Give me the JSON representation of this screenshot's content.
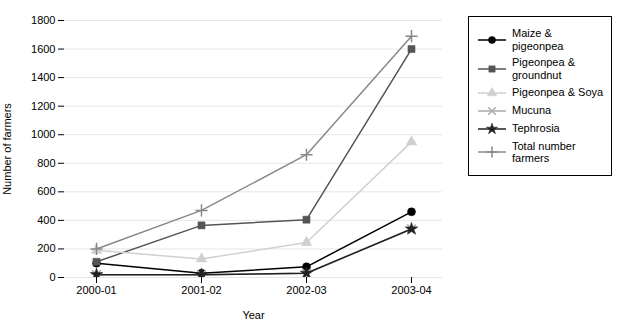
{
  "chart_data": {
    "type": "line",
    "xlabel": "Year",
    "ylabel": "Number of farmers",
    "categories": [
      "2000-01",
      "2001-02",
      "2002-03",
      "2003-04"
    ],
    "series": [
      {
        "name": "Maize &\npigeonpea",
        "color": "#000000",
        "marker": "circle",
        "line_style": "solid",
        "values": [
          100,
          30,
          75,
          460
        ]
      },
      {
        "name": "Pigeonpea &\ngroundnut",
        "color": "#555555",
        "marker": "square",
        "line_style": "solid",
        "values": [
          110,
          365,
          405,
          1600
        ]
      },
      {
        "name": "Pigeonpea & Soya",
        "color": "#d0d0d0",
        "marker": "triangle",
        "line_style": "solid",
        "values": [
          190,
          130,
          245,
          950
        ]
      },
      {
        "name": "Mucuna",
        "color": "#aaaaaa",
        "marker": "times",
        "line_style": "solid",
        "values": [
          20,
          20,
          30,
          340
        ]
      },
      {
        "name": "Tephrosia",
        "color": "#222222",
        "marker": "star",
        "line_style": "solid",
        "values": [
          20,
          20,
          30,
          340
        ]
      },
      {
        "name": "Total number\nfarmers",
        "color": "#888888",
        "marker": "plus",
        "line_style": "solid",
        "values": [
          200,
          470,
          860,
          1690
        ]
      }
    ],
    "ylim": [
      0,
      1800
    ],
    "yticks": [
      0,
      200,
      400,
      600,
      800,
      1000,
      1200,
      1400,
      1600,
      1800
    ],
    "grid": true,
    "legend": "right"
  }
}
